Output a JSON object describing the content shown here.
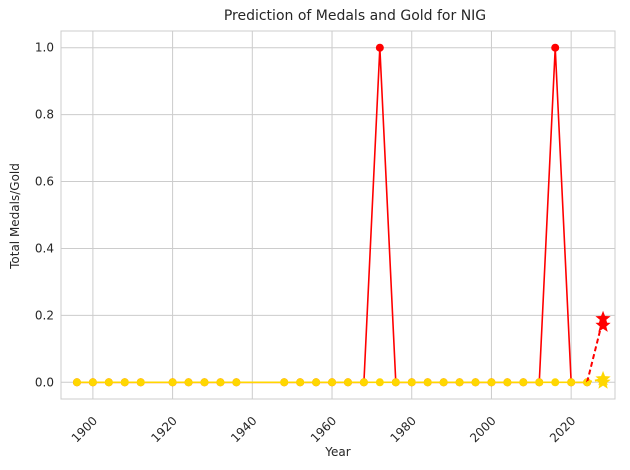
{
  "chart_data": {
    "type": "line",
    "title": "Prediction of Medals and Gold for NIG",
    "xlabel": "Year",
    "ylabel": "Total Medals/Gold",
    "xlim": [
      1892,
      2031
    ],
    "ylim": [
      -0.05,
      1.05
    ],
    "xticks": [
      1900,
      1920,
      1940,
      1960,
      1980,
      2000,
      2020
    ],
    "yticks": [
      0.0,
      0.2,
      0.4,
      0.6,
      0.8,
      1.0
    ],
    "grid": true,
    "legend": "none",
    "colors": {
      "medals": "#ff0000",
      "gold": "#ffd700",
      "grid": "#cccccc",
      "axes": "#cccccc"
    },
    "x": [
      1896,
      1900,
      1904,
      1908,
      1912,
      1920,
      1924,
      1928,
      1932,
      1936,
      1948,
      1952,
      1956,
      1960,
      1964,
      1968,
      1972,
      1976,
      1980,
      1984,
      1988,
      1992,
      1996,
      2000,
      2004,
      2008,
      2012,
      2016,
      2020,
      2024
    ],
    "series": [
      {
        "values": [
          0,
          0,
          0,
          0,
          0,
          0,
          0,
          0,
          0,
          0,
          0,
          0,
          0,
          0,
          0,
          0,
          1,
          0,
          0,
          0,
          0,
          0,
          0,
          0,
          0,
          0,
          0,
          1,
          0,
          0
        ],
        "color": "#ff0000",
        "marker": "circle",
        "style": "solid"
      },
      {
        "values": [
          0,
          0,
          0,
          0,
          0,
          0,
          0,
          0,
          0,
          0,
          0,
          0,
          0,
          0,
          0,
          0,
          0,
          0,
          0,
          0,
          0,
          0,
          0,
          0,
          0,
          0,
          0,
          0,
          0,
          0
        ],
        "color": "#ffd700",
        "marker": "circle",
        "style": "solid"
      }
    ],
    "predictions": [
      {
        "from": [
          2024,
          0
        ],
        "points": [
          [
            2028,
            0.19
          ],
          [
            2028,
            0.17
          ]
        ],
        "color": "#ff0000",
        "marker": "star",
        "style": "dashed"
      },
      {
        "from": [
          2024,
          0
        ],
        "points": [
          [
            2028,
            0.01
          ],
          [
            2028,
            0.0
          ]
        ],
        "color": "#ffd700",
        "marker": "star",
        "style": "dashed"
      }
    ]
  }
}
